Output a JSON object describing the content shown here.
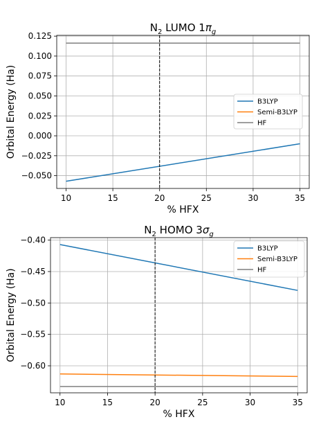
{
  "chart_data": [
    {
      "type": "line",
      "title_main": "N",
      "title_sub": "2",
      "title_rest": " LUMO 1",
      "title_symbol": "π",
      "title_symbol_sub": "g",
      "xlabel": "% HFX",
      "ylabel": "Orbital Energy (Ha)",
      "xlim": [
        9,
        36
      ],
      "ylim": [
        -0.066,
        0.126
      ],
      "xticks": [
        10,
        15,
        20,
        25,
        30,
        35
      ],
      "xtick_labels": [
        "10",
        "15",
        "20",
        "25",
        "30",
        "35"
      ],
      "yticks": [
        -0.05,
        -0.025,
        0.0,
        0.025,
        0.05,
        0.075,
        0.1,
        0.125
      ],
      "ytick_labels": [
        "−0.050",
        "−0.025",
        "0.000",
        "0.025",
        "0.050",
        "0.075",
        "0.100",
        "0.125"
      ],
      "grid": true,
      "legend_position": "center-right",
      "vline": {
        "x": 20,
        "style": "dashed",
        "color": "#000000"
      },
      "series": [
        {
          "name": "B3LYP",
          "color": "#1f77b4",
          "x": [
            10,
            35
          ],
          "y": [
            -0.057,
            -0.01
          ]
        },
        {
          "name": "Semi-B3LYP",
          "color": "#ff7f0e",
          "x": [
            10,
            35
          ],
          "y": [
            0.1162,
            0.1162
          ]
        },
        {
          "name": "HF",
          "color": "#7f7f7f",
          "x": [
            10,
            35
          ],
          "y": [
            0.1162,
            0.1162
          ]
        }
      ]
    },
    {
      "type": "line",
      "title_main": "N",
      "title_sub": "2",
      "title_rest": " HOMO 3",
      "title_symbol": "σ",
      "title_symbol_sub": "g",
      "xlabel": "% HFX",
      "ylabel": "Orbital Energy (Ha)",
      "xlim": [
        9,
        36
      ],
      "ylim": [
        -0.643,
        -0.396
      ],
      "xticks": [
        10,
        15,
        20,
        25,
        30,
        35
      ],
      "xtick_labels": [
        "10",
        "15",
        "20",
        "25",
        "30",
        "35"
      ],
      "yticks": [
        -0.6,
        -0.55,
        -0.5,
        -0.45,
        -0.4
      ],
      "ytick_labels": [
        "−0.60",
        "−0.55",
        "−0.50",
        "−0.45",
        "−0.40"
      ],
      "grid": true,
      "legend_position": "top-right",
      "vline": {
        "x": 20,
        "style": "dashed",
        "color": "#000000"
      },
      "series": [
        {
          "name": "B3LYP",
          "color": "#1f77b4",
          "x": [
            10,
            35
          ],
          "y": [
            -0.407,
            -0.48
          ]
        },
        {
          "name": "Semi-B3LYP",
          "color": "#ff7f0e",
          "x": [
            10,
            35
          ],
          "y": [
            -0.613,
            -0.617
          ]
        },
        {
          "name": "HF",
          "color": "#7f7f7f",
          "x": [
            10,
            35
          ],
          "y": [
            -0.633,
            -0.633
          ]
        }
      ]
    }
  ]
}
